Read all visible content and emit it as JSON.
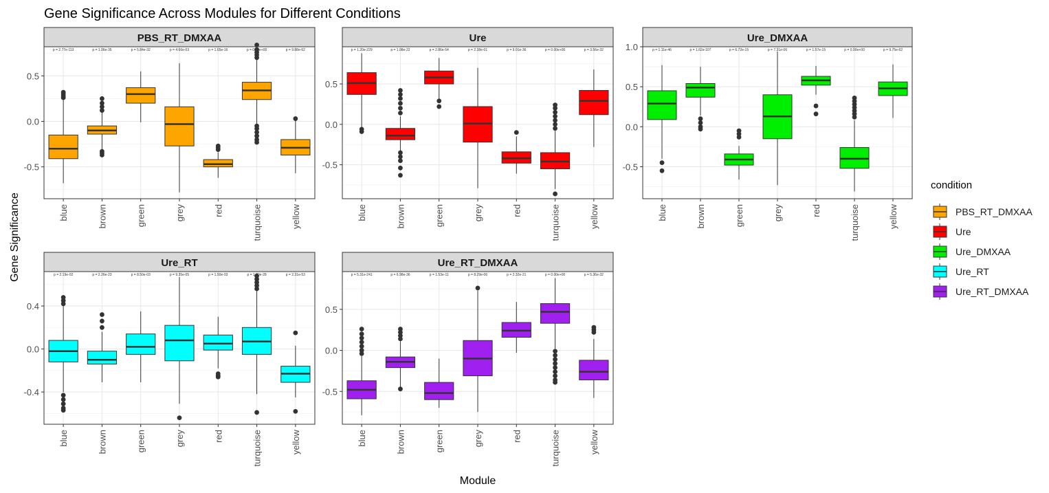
{
  "chart_data": {
    "type": "box",
    "title": "Gene Significance Across Modules for Different Conditions",
    "xlabel": "Module",
    "ylabel": "Gene Significance",
    "categories": [
      "blue",
      "brown",
      "green",
      "grey",
      "red",
      "turquoise",
      "yellow"
    ],
    "legend": {
      "title": "condition",
      "position": "right",
      "items": [
        {
          "label": "PBS_RT_DMXAA",
          "color": "#FFA500"
        },
        {
          "label": "Ure",
          "color": "#FF0000"
        },
        {
          "label": "Ure_DMXAA",
          "color": "#00EE00"
        },
        {
          "label": "Ure_RT",
          "color": "#00FFFF"
        },
        {
          "label": "Ure_RT_DMXAA",
          "color": "#A020F0"
        }
      ]
    },
    "grid": true,
    "panels": [
      {
        "name": "PBS_RT_DMXAA",
        "color": "#FFA500",
        "ylim": [
          -0.85,
          0.82
        ],
        "yticks": [
          -0.5,
          0.0,
          0.5
        ],
        "ytick_labels": [
          "-0.5",
          "0.0",
          "0.5"
        ],
        "pvalues": [
          "p = 2.77e-113",
          "p = 1.06e-35",
          "p = 5.84e-32",
          "p = 4.66e-03",
          "p = 1.65e-16",
          "p = 0.00e+00",
          "p = 9.88e-62"
        ],
        "boxes": [
          {
            "category": "blue",
            "lower": -0.68,
            "q1": -0.41,
            "median": -0.3,
            "q3": -0.15,
            "upper": 0.25,
            "outliers": [
              0.26,
              0.28,
              0.3,
              0.32
            ]
          },
          {
            "category": "brown",
            "lower": -0.32,
            "q1": -0.14,
            "median": -0.1,
            "q3": -0.05,
            "upper": 0.1,
            "outliers": [
              0.12,
              0.16,
              0.2,
              0.25,
              -0.33,
              -0.35,
              -0.37
            ]
          },
          {
            "category": "green",
            "lower": -0.01,
            "q1": 0.2,
            "median": 0.3,
            "q3": 0.37,
            "upper": 0.55,
            "outliers": []
          },
          {
            "category": "grey",
            "lower": -0.78,
            "q1": -0.27,
            "median": -0.03,
            "q3": 0.16,
            "upper": 0.64,
            "outliers": []
          },
          {
            "category": "red",
            "lower": -0.62,
            "q1": -0.5,
            "median": -0.47,
            "q3": -0.42,
            "upper": -0.34,
            "outliers": [
              -0.27,
              -0.29,
              -0.31
            ]
          },
          {
            "category": "turquoise",
            "lower": -0.24,
            "q1": 0.24,
            "median": 0.34,
            "q3": 0.43,
            "upper": 0.69,
            "outliers": [
              0.7,
              0.73,
              0.76,
              0.79,
              0.84,
              -0.05,
              -0.08,
              -0.12,
              -0.16,
              -0.2,
              -0.23
            ]
          },
          {
            "category": "yellow",
            "lower": -0.57,
            "q1": -0.37,
            "median": -0.29,
            "q3": -0.2,
            "upper": 0.02,
            "outliers": [
              0.03
            ]
          }
        ]
      },
      {
        "name": "Ure",
        "color": "#FF0000",
        "ylim": [
          -0.92,
          0.96
        ],
        "yticks": [
          -0.5,
          0.0,
          0.5
        ],
        "ytick_labels": [
          "-0.5",
          "0.0",
          "0.5"
        ],
        "pvalues": [
          "p = 1.20e-229",
          "p = 1.08e-22",
          "p = 2.86e-54",
          "p = 2.38e-01",
          "p = 9.01e-36",
          "p = 0.00e+00",
          "p = 3.56e-32"
        ],
        "boxes": [
          {
            "category": "blue",
            "lower": -0.05,
            "q1": 0.37,
            "median": 0.51,
            "q3": 0.64,
            "upper": 0.88,
            "outliers": [
              -0.06,
              -0.09
            ]
          },
          {
            "category": "brown",
            "lower": -0.33,
            "q1": -0.19,
            "median": -0.14,
            "q3": -0.05,
            "upper": 0.1,
            "outliers": [
              0.14,
              0.2,
              0.26,
              0.32,
              0.37,
              0.42,
              -0.35,
              -0.4,
              -0.45,
              -0.54,
              -0.63
            ]
          },
          {
            "category": "green",
            "lower": 0.3,
            "q1": 0.5,
            "median": 0.58,
            "q3": 0.66,
            "upper": 0.82,
            "outliers": [
              0.29,
              0.22
            ]
          },
          {
            "category": "grey",
            "lower": -0.79,
            "q1": -0.22,
            "median": 0.01,
            "q3": 0.22,
            "upper": 0.7,
            "outliers": []
          },
          {
            "category": "red",
            "lower": -0.61,
            "q1": -0.48,
            "median": -0.42,
            "q3": -0.34,
            "upper": -0.15,
            "outliers": [
              -0.1
            ]
          },
          {
            "category": "turquoise",
            "lower": -0.8,
            "q1": -0.55,
            "median": -0.46,
            "q3": -0.35,
            "upper": -0.08,
            "outliers": [
              -0.05,
              0.0,
              0.05,
              0.1,
              0.15,
              0.2,
              0.24,
              -0.86
            ]
          },
          {
            "category": "yellow",
            "lower": -0.28,
            "q1": 0.12,
            "median": 0.29,
            "q3": 0.42,
            "upper": 0.68,
            "outliers": []
          }
        ]
      },
      {
        "name": "Ure_DMXAA",
        "color": "#00EE00",
        "ylim": [
          -0.9,
          1.0
        ],
        "yticks": [
          -0.5,
          0.0,
          0.5,
          1.0
        ],
        "ytick_labels": [
          "-0.5",
          "0.0",
          "0.5",
          "1.0"
        ],
        "pvalues": [
          "p = 1.11e-46",
          "p = 1.62e-107",
          "p = 6.72e-15",
          "p = 7.31e-06",
          "p = 1.57e-15",
          "p = 0.00e+00",
          "p = 9.75e-62"
        ],
        "boxes": [
          {
            "category": "blue",
            "lower": -0.4,
            "q1": 0.09,
            "median": 0.29,
            "q3": 0.45,
            "upper": 0.77,
            "outliers": [
              -0.45,
              -0.55
            ]
          },
          {
            "category": "brown",
            "lower": 0.14,
            "q1": 0.37,
            "median": 0.49,
            "q3": 0.54,
            "upper": 0.75,
            "outliers": [
              0.1,
              0.05,
              0.0,
              -0.03
            ]
          },
          {
            "category": "green",
            "lower": -0.66,
            "q1": -0.48,
            "median": -0.41,
            "q3": -0.34,
            "upper": -0.24,
            "outliers": [
              -0.05,
              -0.09,
              -0.13
            ]
          },
          {
            "category": "grey",
            "lower": -0.73,
            "q1": -0.15,
            "median": 0.13,
            "q3": 0.4,
            "upper": 0.94,
            "outliers": []
          },
          {
            "category": "red",
            "lower": 0.4,
            "q1": 0.52,
            "median": 0.58,
            "q3": 0.63,
            "upper": 0.76,
            "outliers": [
              0.26,
              0.16
            ]
          },
          {
            "category": "turquoise",
            "lower": -0.81,
            "q1": -0.52,
            "median": -0.4,
            "q3": -0.26,
            "upper": 0.08,
            "outliers": [
              0.12,
              0.16,
              0.2,
              0.24,
              0.28,
              0.32,
              0.36
            ]
          },
          {
            "category": "yellow",
            "lower": 0.11,
            "q1": 0.39,
            "median": 0.48,
            "q3": 0.56,
            "upper": 0.78,
            "outliers": []
          }
        ]
      },
      {
        "name": "Ure_RT",
        "color": "#00FFFF",
        "ylim": [
          -0.7,
          0.72
        ],
        "yticks": [
          -0.4,
          0.0,
          0.4
        ],
        "ytick_labels": [
          "-0.4",
          "0.0",
          "0.4"
        ],
        "pvalues": [
          "p = 2.19e-02",
          "p = 2.26e-23",
          "p = 8.50e-03",
          "p = 9.35e-05",
          "p = 1.50e-03",
          "p = 1.80e-28",
          "p = 2.31e-53"
        ],
        "boxes": [
          {
            "category": "blue",
            "lower": -0.4,
            "q1": -0.12,
            "median": -0.02,
            "q3": 0.08,
            "upper": 0.4,
            "outliers": [
              0.42,
              0.45,
              0.48,
              -0.43,
              -0.47,
              -0.51,
              -0.55,
              -0.57
            ]
          },
          {
            "category": "brown",
            "lower": -0.31,
            "q1": -0.14,
            "median": -0.1,
            "q3": -0.02,
            "upper": 0.16,
            "outliers": [
              0.2,
              0.26,
              0.32
            ]
          },
          {
            "category": "green",
            "lower": -0.31,
            "q1": -0.05,
            "median": 0.02,
            "q3": 0.14,
            "upper": 0.35,
            "outliers": []
          },
          {
            "category": "grey",
            "lower": -0.51,
            "q1": -0.11,
            "median": 0.08,
            "q3": 0.22,
            "upper": 0.67,
            "outliers": [
              -0.64
            ]
          },
          {
            "category": "red",
            "lower": -0.18,
            "q1": -0.01,
            "median": 0.05,
            "q3": 0.13,
            "upper": 0.3,
            "outliers": [
              -0.23,
              -0.25,
              -0.26
            ]
          },
          {
            "category": "turquoise",
            "lower": -0.42,
            "q1": -0.05,
            "median": 0.07,
            "q3": 0.2,
            "upper": 0.54,
            "outliers": [
              0.56,
              0.59,
              0.62,
              0.65,
              0.68,
              -0.59
            ]
          },
          {
            "category": "yellow",
            "lower": -0.45,
            "q1": -0.31,
            "median": -0.23,
            "q3": -0.16,
            "upper": 0.03,
            "outliers": [
              0.15,
              -0.58
            ]
          }
        ]
      },
      {
        "name": "Ure_RT_DMXAA",
        "color": "#A020F0",
        "ylim": [
          -0.9,
          0.96
        ],
        "yticks": [
          -0.5,
          0.0,
          0.5
        ],
        "ytick_labels": [
          "-0.5",
          "0.0",
          "0.5"
        ],
        "pvalues": [
          "p = 5.31e-241",
          "p = 6.98e-36",
          "p = 1.53e-11",
          "p = 8.29e-06",
          "p = 2.32e-21",
          "p = 0.00e+00",
          "p = 5.36e-32"
        ],
        "boxes": [
          {
            "category": "blue",
            "lower": -0.79,
            "q1": -0.59,
            "median": -0.48,
            "q3": -0.37,
            "upper": -0.07,
            "outliers": [
              -0.04,
              0.0,
              0.05,
              0.1,
              0.15,
              0.2,
              0.26
            ]
          },
          {
            "category": "brown",
            "lower": -0.45,
            "q1": -0.21,
            "median": -0.14,
            "q3": -0.08,
            "upper": 0.11,
            "outliers": [
              0.14,
              0.18,
              0.22,
              0.26,
              -0.47
            ]
          },
          {
            "category": "green",
            "lower": -0.7,
            "q1": -0.6,
            "median": -0.52,
            "q3": -0.39,
            "upper": -0.1,
            "outliers": []
          },
          {
            "category": "grey",
            "lower": -0.75,
            "q1": -0.31,
            "median": -0.1,
            "q3": 0.12,
            "upper": 0.73,
            "outliers": [
              0.76
            ]
          },
          {
            "category": "red",
            "lower": -0.03,
            "q1": 0.16,
            "median": 0.24,
            "q3": 0.34,
            "upper": 0.59,
            "outliers": []
          },
          {
            "category": "turquoise",
            "lower": 0.02,
            "q1": 0.33,
            "median": 0.47,
            "q3": 0.57,
            "upper": 0.88,
            "outliers": [
              -0.01,
              -0.06,
              -0.11,
              -0.16,
              -0.21,
              -0.26,
              -0.31,
              -0.36,
              -0.39
            ]
          },
          {
            "category": "yellow",
            "lower": -0.58,
            "q1": -0.36,
            "median": -0.26,
            "q3": -0.12,
            "upper": 0.14,
            "outliers": [
              0.22,
              0.25,
              0.28
            ]
          }
        ]
      }
    ]
  }
}
